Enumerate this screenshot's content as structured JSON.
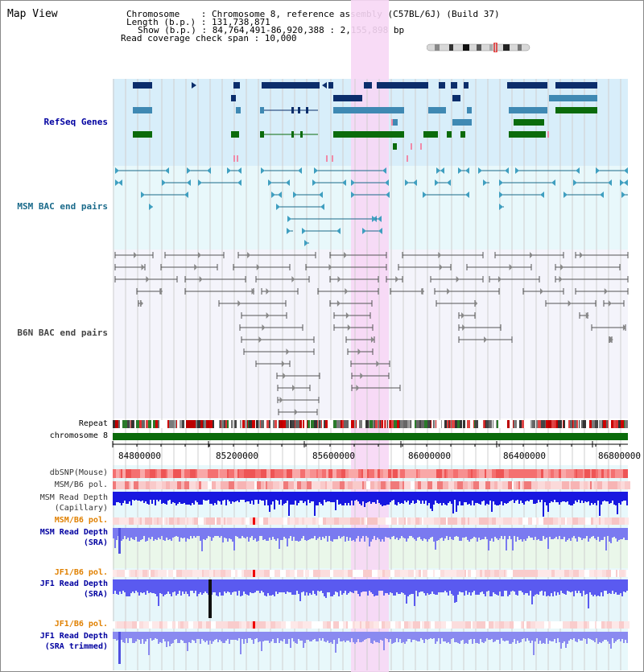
{
  "title": "Map View",
  "info": {
    "chromosome_line": "Chromosome    : Chromosome 8, reference assembly (C57BL/6J) (Build 37)",
    "length_line": "Length (b.p.) : 131,738,871",
    "show_line": "Show (b.p.) : 84,764,491-86,920,388 : 2,155,898 bp",
    "coverage_line": "Read coverage check span : 10,000"
  },
  "tracks": {
    "refseq": "RefSeq Genes",
    "msm_bac": "MSM BAC end pairs",
    "b6n_bac": "B6N BAC end pairs",
    "repeat": "Repeat",
    "chromosome": "chromosome 8",
    "dbsnp": "dbSNP(Mouse)",
    "msm_b6_pol": "MSM/B6 pol.",
    "msm_read_cap_1": "MSM Read Depth",
    "msm_read_cap_2": "(Capillary)",
    "msm_b6_pol2": "MSM/B6 pol.",
    "msm_read_sra_1": "MSM Read Depth",
    "msm_read_sra_2": "(SRA)",
    "jf1_b6_pol": "JF1/B6 pol.",
    "jf1_read_sra_1": "JF1 Read Depth",
    "jf1_read_sra_2": "(SRA)",
    "jf1_b6_pol2": "JF1/B6 pol.",
    "jf1_read_trim_1": "JF1 Read Depth",
    "jf1_read_trim_2": "(SRA trimmed)"
  },
  "axis": {
    "ticks": [
      "84800000",
      "85200000",
      "85600000",
      "86000000",
      "86400000",
      "86800000"
    ]
  },
  "colors": {
    "label_blue": "#0000a0",
    "label_teal": "#1a6a8a",
    "label_orange": "#e08000",
    "highlight": "#f7d7f5",
    "refseq_bg": "#d8eefa",
    "track_bg": "#e8f8fb"
  }
}
